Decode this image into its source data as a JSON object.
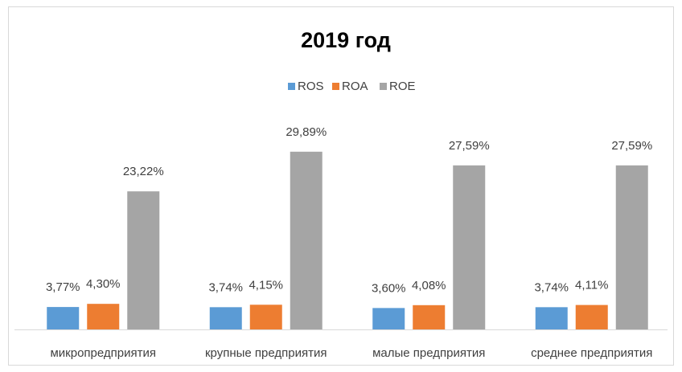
{
  "chart_data": {
    "type": "bar",
    "title": "2019 год",
    "categories": [
      "микропредприятия",
      "крупные предприятия",
      "малые предприятия",
      "среднее предприятия"
    ],
    "series": [
      {
        "name": "ROS",
        "color": "#5b9bd5",
        "values": [
          3.77,
          3.74,
          3.6,
          3.74
        ],
        "value_labels": [
          "3,77%",
          "3,74%",
          "3,60%",
          "3,74%"
        ]
      },
      {
        "name": "ROA",
        "color": "#ed7d31",
        "values": [
          4.3,
          4.15,
          4.08,
          4.11
        ],
        "value_labels": [
          "4,30%",
          "4,15%",
          "4,08%",
          "4,11%"
        ]
      },
      {
        "name": "ROE",
        "color": "#a5a5a5",
        "values": [
          23.22,
          29.89,
          27.59,
          27.59
        ],
        "value_labels": [
          "23,22%",
          "29,89%",
          "27,59%",
          "27,59%"
        ]
      }
    ]
  }
}
